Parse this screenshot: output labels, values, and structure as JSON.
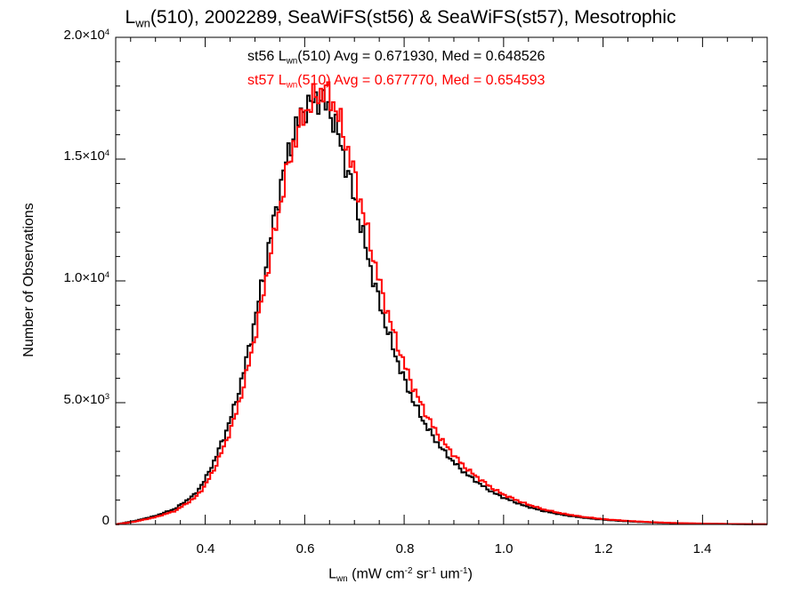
{
  "chart_data": {
    "type": "line",
    "title": {
      "pre": "L",
      "sub": "wn",
      "post": "(510), 2002289, SeaWiFS(st56) & SeaWiFS(st57), Mesotrophic"
    },
    "xlabel": {
      "pre": "L",
      "sub": "wn",
      "mid": " (mW cm",
      "sup1": "-2",
      "mid2": " sr",
      "sup2": "-1",
      "post": " um",
      "sup3": "-1",
      "end": ")"
    },
    "ylabel": "Number of Observations",
    "xlim": [
      0.22,
      1.53
    ],
    "ylim": [
      0,
      20000
    ],
    "x_ticks": [
      "0.4",
      "0.6",
      "0.8",
      "1.0",
      "1.2",
      "1.4"
    ],
    "y_ticks": [
      {
        "mant": "0",
        "exp": ""
      },
      {
        "mant": "5.0×10",
        "exp": "3"
      },
      {
        "mant": "1.0×10",
        "exp": "4"
      },
      {
        "mant": "1.5×10",
        "exp": "4"
      },
      {
        "mant": "2.0×10",
        "exp": "4"
      }
    ],
    "grid": false,
    "series": [
      {
        "name": "st56",
        "color": "#000000",
        "annotation": {
          "pre": "st56 L",
          "sub": "wn",
          "post": "(510) Avg = 0.671930, Med = 0.648526"
        },
        "x": [
          0.22,
          0.26,
          0.3,
          0.34,
          0.38,
          0.4,
          0.42,
          0.44,
          0.46,
          0.48,
          0.5,
          0.52,
          0.54,
          0.56,
          0.58,
          0.6,
          0.62,
          0.63,
          0.64,
          0.65,
          0.66,
          0.67,
          0.68,
          0.7,
          0.72,
          0.74,
          0.76,
          0.78,
          0.8,
          0.82,
          0.84,
          0.86,
          0.88,
          0.9,
          0.92,
          0.94,
          0.96,
          0.98,
          1.0,
          1.04,
          1.08,
          1.12,
          1.16,
          1.2,
          1.25,
          1.3,
          1.35,
          1.4,
          1.45,
          1.5,
          1.53
        ],
        "y": [
          0,
          150,
          350,
          650,
          1250,
          1850,
          2700,
          3700,
          4900,
          6500,
          8400,
          10500,
          12700,
          14700,
          16200,
          17100,
          17400,
          17500,
          17300,
          17000,
          16500,
          15800,
          15000,
          13400,
          11600,
          9900,
          8400,
          7100,
          5950,
          5000,
          4200,
          3550,
          3000,
          2550,
          2150,
          1850,
          1550,
          1300,
          1100,
          780,
          550,
          390,
          275,
          195,
          125,
          80,
          50,
          30,
          18,
          10,
          5
        ]
      },
      {
        "name": "st57",
        "color": "#ff0000",
        "annotation": {
          "pre": "st57 L",
          "sub": "wn",
          "post": "(510) Avg = 0.677770, Med = 0.654593"
        },
        "x": [
          0.22,
          0.26,
          0.3,
          0.34,
          0.38,
          0.4,
          0.42,
          0.44,
          0.46,
          0.48,
          0.5,
          0.52,
          0.54,
          0.56,
          0.58,
          0.6,
          0.62,
          0.63,
          0.64,
          0.65,
          0.66,
          0.67,
          0.68,
          0.7,
          0.72,
          0.74,
          0.76,
          0.78,
          0.8,
          0.82,
          0.84,
          0.86,
          0.88,
          0.9,
          0.92,
          0.94,
          0.96,
          0.98,
          1.0,
          1.04,
          1.08,
          1.12,
          1.16,
          1.2,
          1.25,
          1.3,
          1.35,
          1.4,
          1.45,
          1.5,
          1.53
        ],
        "y": [
          0,
          120,
          300,
          560,
          1100,
          1600,
          2350,
          3300,
          4400,
          5900,
          7700,
          9800,
          12000,
          14100,
          15800,
          16900,
          17500,
          17700,
          17800,
          17600,
          17200,
          16600,
          15900,
          14400,
          12600,
          10800,
          9200,
          7800,
          6600,
          5550,
          4700,
          3950,
          3350,
          2850,
          2400,
          2050,
          1750,
          1450,
          1230,
          880,
          620,
          440,
          310,
          220,
          145,
          92,
          58,
          35,
          20,
          12,
          6
        ]
      }
    ]
  }
}
